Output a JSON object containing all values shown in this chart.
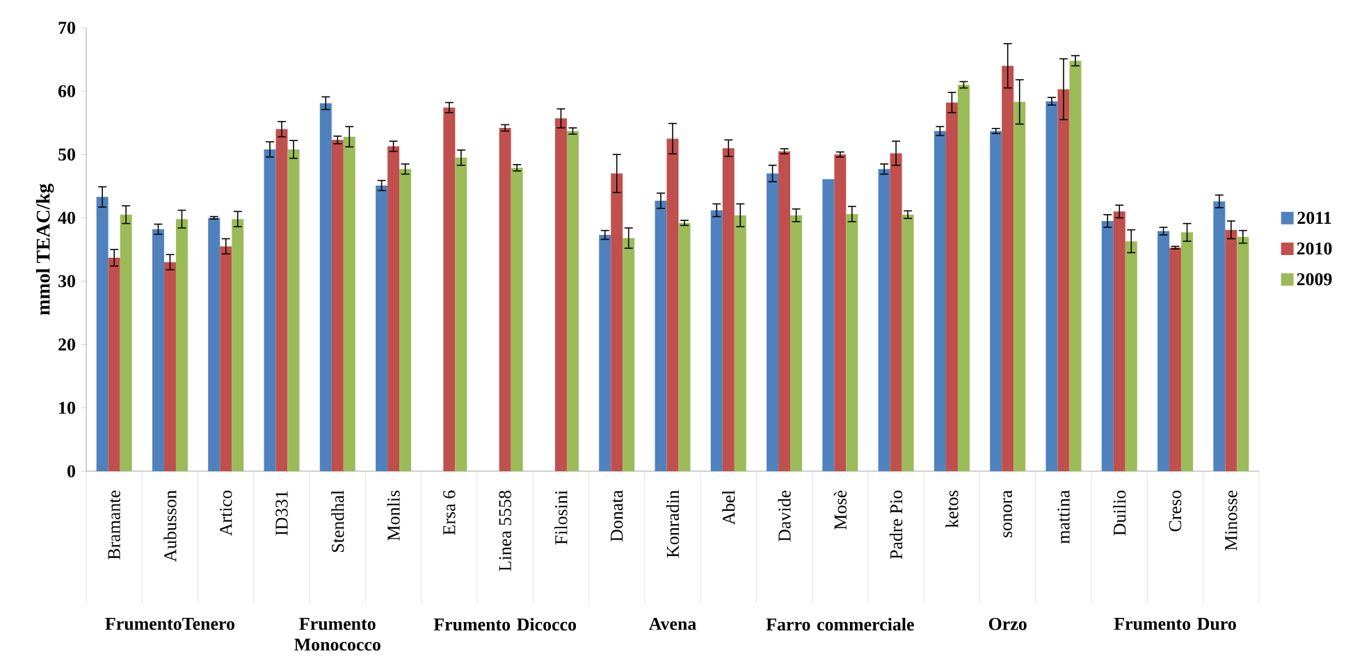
{
  "chart_data": {
    "type": "bar",
    "ylabel": "mmol TEAC/kg",
    "categories": [
      "Bramante",
      "Aubusson",
      "Artico",
      "ID331",
      "Stendhal",
      "Monlis",
      "Ersa 6",
      "Linea 5558",
      "Filosini",
      "Donata",
      "Konradin",
      "Abel",
      "Davide",
      "Mosè",
      "Padre Pio",
      "ketos",
      "sonora",
      "mattina",
      "Duilio",
      "Creso",
      "Minosse"
    ],
    "series": [
      {
        "name": "2011",
        "color": "#4f81bd",
        "values": [
          43.3,
          38.2,
          40.0,
          50.8,
          58.1,
          45.1,
          null,
          null,
          null,
          37.3,
          42.7,
          41.2,
          47.0,
          46.1,
          47.7,
          53.7,
          53.7,
          58.4,
          39.5,
          37.9,
          42.6
        ],
        "errors": [
          1.6,
          0.8,
          0.2,
          1.2,
          1.0,
          0.8,
          null,
          null,
          null,
          0.7,
          1.2,
          1.0,
          1.3,
          null,
          0.8,
          0.7,
          0.4,
          0.6,
          1.0,
          0.6,
          1.0
        ]
      },
      {
        "name": "2010",
        "color": "#c0504d",
        "values": [
          33.7,
          33.0,
          35.5,
          54.0,
          52.3,
          51.3,
          57.4,
          54.2,
          55.7,
          47.0,
          52.5,
          51.0,
          50.5,
          50.0,
          50.2,
          58.2,
          64.0,
          60.3,
          41.0,
          35.3,
          38.1
        ],
        "errors": [
          1.3,
          1.2,
          1.2,
          1.2,
          0.6,
          0.8,
          0.8,
          0.5,
          1.5,
          3.0,
          2.4,
          1.3,
          0.4,
          0.4,
          1.9,
          1.6,
          3.5,
          4.8,
          1.0,
          0.2,
          1.4
        ]
      },
      {
        "name": "2009",
        "color": "#9bbb59",
        "values": [
          40.5,
          39.8,
          39.8,
          50.8,
          52.8,
          47.7,
          49.5,
          47.9,
          53.7,
          36.8,
          39.2,
          40.4,
          40.4,
          40.6,
          40.5,
          61.0,
          58.3,
          64.8,
          36.3,
          37.7,
          37.0
        ],
        "errors": [
          1.4,
          1.4,
          1.2,
          1.4,
          1.6,
          0.8,
          1.2,
          0.5,
          0.5,
          1.6,
          0.4,
          1.8,
          1.0,
          1.2,
          0.6,
          0.5,
          3.5,
          0.8,
          1.8,
          1.4,
          1.0
        ]
      }
    ],
    "annotations": [
      "FrumentoTenero",
      "Frumento Monococco",
      "Frumento Dicocco",
      "Avena",
      "Farro commerciale",
      "Orzo",
      "Frumento Duro"
    ],
    "ylim": [
      0,
      70
    ],
    "yticks": [
      0,
      10,
      20,
      30,
      40,
      50,
      60,
      70
    ],
    "grid": false,
    "legend": "right"
  }
}
